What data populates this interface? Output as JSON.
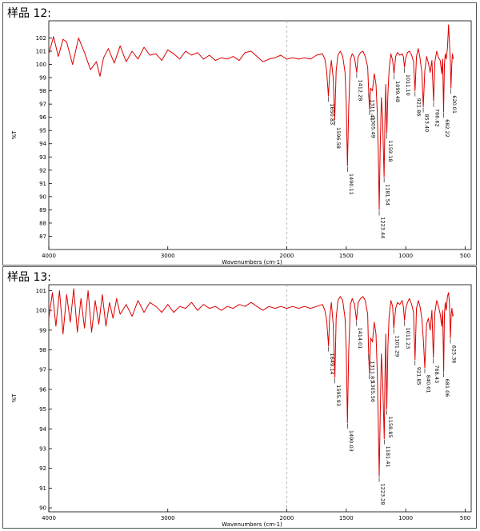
{
  "colors": {
    "spectrum": "#dd0000",
    "axis": "#000000",
    "guide": "#aaaaaa",
    "frame": "#555555"
  },
  "chart_data": [
    {
      "type": "line",
      "title": "样品 12:",
      "xlabel": "Wavenumbers (cm-1)",
      "ylabel": "%T",
      "xlim": [
        4000,
        450
      ],
      "ylim": [
        86,
        103.3
      ],
      "x_ticks": [
        "4000",
        "3000",
        "2000",
        "1500",
        "1000",
        "500"
      ],
      "y_ticks": [
        "87",
        "88",
        "89",
        "90",
        "91",
        "92",
        "93",
        "94",
        "95",
        "96",
        "97",
        "98",
        "99",
        "100",
        "101",
        "102"
      ],
      "guide_line_x": 2000,
      "peaks": [
        {
          "x": 1650,
          "y": 97.6,
          "label": "1650.83"
        },
        {
          "x": 1597,
          "y": 95.8,
          "label": "1596.58"
        },
        {
          "x": 1490,
          "y": 92.3,
          "label": "1490.11"
        },
        {
          "x": 1412,
          "y": 99.4,
          "label": "1412.28"
        },
        {
          "x": 1311,
          "y": 97.9,
          "label": "1311.41"
        },
        {
          "x": 1305,
          "y": 96.6,
          "label": "1305.49"
        },
        {
          "x": 1223,
          "y": 89.0,
          "label": "1223.44"
        },
        {
          "x": 1182,
          "y": 91.5,
          "label": "1181.54"
        },
        {
          "x": 1159,
          "y": 94.8,
          "label": "1159.18"
        },
        {
          "x": 1099,
          "y": 99.3,
          "label": "1099.48"
        },
        {
          "x": 1011,
          "y": 99.8,
          "label": "1011.10"
        },
        {
          "x": 922,
          "y": 98.0,
          "label": "921.86"
        },
        {
          "x": 853,
          "y": 96.8,
          "label": "853.40"
        },
        {
          "x": 766,
          "y": 97.2,
          "label": "766.62"
        },
        {
          "x": 682,
          "y": 96.4,
          "label": "682.22"
        },
        {
          "x": 620,
          "y": 98.2,
          "label": "620.01"
        }
      ],
      "series": [
        {
          "x": [
            4000,
            3960,
            3920,
            3880,
            3850,
            3800,
            3750,
            3700,
            3650,
            3600,
            3570,
            3540,
            3500,
            3450,
            3400,
            3350,
            3300,
            3250,
            3200,
            3150,
            3100,
            3050,
            3000,
            2950,
            2900,
            2850,
            2800,
            2750,
            2700,
            2650,
            2600,
            2550,
            2500,
            2450,
            2400,
            2350,
            2300,
            2250,
            2200,
            2150,
            2100,
            2050,
            2000,
            1950,
            1900,
            1850,
            1800,
            1750,
            1700,
            1680,
            1665,
            1650,
            1640,
            1625,
            1610,
            1597,
            1585,
            1570,
            1550,
            1530,
            1510,
            1500,
            1490,
            1480,
            1465,
            1450,
            1430,
            1412,
            1400,
            1380,
            1360,
            1340,
            1320,
            1311,
            1305,
            1295,
            1280,
            1265,
            1250,
            1240,
            1230,
            1223,
            1215,
            1205,
            1195,
            1182,
            1175,
            1168,
            1159,
            1150,
            1140,
            1125,
            1110,
            1099,
            1085,
            1070,
            1050,
            1030,
            1020,
            1011,
            1000,
            985,
            970,
            950,
            935,
            922,
            910,
            895,
            880,
            865,
            853,
            840,
            825,
            810,
            795,
            780,
            766,
            755,
            740,
            725,
            710,
            698,
            690,
            682,
            675,
            668,
            660,
            650,
            640,
            632,
            625,
            620,
            614,
            608,
            600
          ],
          "y": [
            100.8,
            102.1,
            100.6,
            101.9,
            101.7,
            100.0,
            102.0,
            100.9,
            99.6,
            100.2,
            99.1,
            100.5,
            101.2,
            100.1,
            101.4,
            100.2,
            101.0,
            100.4,
            101.3,
            100.7,
            100.8,
            100.3,
            101.1,
            100.8,
            100.4,
            101.0,
            100.7,
            100.9,
            100.4,
            100.7,
            100.3,
            100.5,
            100.4,
            100.6,
            100.3,
            100.9,
            101.0,
            100.6,
            100.2,
            100.4,
            100.5,
            100.7,
            100.4,
            100.5,
            100.4,
            100.5,
            100.4,
            100.7,
            100.8,
            100.4,
            99.5,
            97.6,
            99.2,
            100.3,
            99.0,
            95.8,
            99.5,
            100.7,
            101.0,
            100.6,
            99.4,
            97.0,
            92.3,
            96.5,
            100.4,
            100.8,
            100.5,
            99.4,
            100.6,
            100.9,
            101.0,
            100.6,
            99.8,
            97.9,
            96.6,
            98.2,
            98.0,
            99.3,
            98.5,
            96.5,
            93.0,
            89.0,
            93.5,
            97.5,
            96.0,
            91.5,
            95.8,
            98.5,
            94.8,
            97.8,
            99.6,
            100.8,
            100.3,
            99.3,
            100.6,
            100.9,
            100.7,
            100.8,
            100.6,
            99.8,
            100.5,
            100.9,
            101.0,
            100.7,
            100.2,
            98.0,
            100.6,
            101.2,
            100.5,
            99.4,
            96.8,
            99.5,
            100.6,
            100.1,
            99.4,
            100.3,
            97.2,
            100.2,
            101.0,
            100.5,
            100.3,
            99.3,
            100.4,
            96.4,
            100.0,
            100.8,
            100.4,
            101.2,
            103.0,
            101.5,
            100.2,
            98.2,
            99.8,
            100.8,
            100.4
          ]
        }
      ]
    },
    {
      "type": "line",
      "title": "样品 13:",
      "xlabel": "Wavenumbers (cm-1)",
      "ylabel": "%T",
      "xlim": [
        4000,
        450
      ],
      "ylim": [
        89.8,
        101.3
      ],
      "x_ticks": [
        "4000",
        "3000",
        "2000",
        "1500",
        "1000",
        "500"
      ],
      "y_ticks": [
        "90",
        "91",
        "92",
        "93",
        "94",
        "95",
        "96",
        "97",
        "98",
        "99",
        "100",
        "101"
      ],
      "guide_line_x": 2000,
      "peaks": [
        {
          "x": 1649,
          "y": 98.2,
          "label": "1649.14"
        },
        {
          "x": 1596,
          "y": 96.6,
          "label": "1595.93"
        },
        {
          "x": 1490,
          "y": 94.3,
          "label": "1490.03"
        },
        {
          "x": 1414,
          "y": 99.5,
          "label": "1414.01"
        },
        {
          "x": 1312,
          "y": 97.8,
          "label": "1311.83"
        },
        {
          "x": 1306,
          "y": 96.8,
          "label": "1305.56"
        },
        {
          "x": 1223,
          "y": 91.6,
          "label": "1223.28"
        },
        {
          "x": 1181,
          "y": 93.5,
          "label": "1181.41"
        },
        {
          "x": 1159,
          "y": 95.0,
          "label": "1158.85"
        },
        {
          "x": 1101,
          "y": 99.1,
          "label": "1101.29"
        },
        {
          "x": 1011,
          "y": 99.5,
          "label": "1011.23"
        },
        {
          "x": 922,
          "y": 97.5,
          "label": "921.85"
        },
        {
          "x": 840,
          "y": 97.1,
          "label": "840.01"
        },
        {
          "x": 768,
          "y": 97.6,
          "label": "768.43"
        },
        {
          "x": 681,
          "y": 96.9,
          "label": "681.06"
        },
        {
          "x": 625,
          "y": 98.6,
          "label": "625.36"
        }
      ],
      "series": [
        {
          "x": [
            4000,
            3970,
            3940,
            3910,
            3880,
            3850,
            3820,
            3790,
            3760,
            3730,
            3700,
            3670,
            3640,
            3610,
            3580,
            3550,
            3520,
            3490,
            3460,
            3430,
            3400,
            3350,
            3300,
            3250,
            3200,
            3150,
            3100,
            3050,
            3000,
            2950,
            2900,
            2850,
            2800,
            2750,
            2700,
            2650,
            2600,
            2550,
            2500,
            2450,
            2400,
            2350,
            2300,
            2250,
            2200,
            2150,
            2100,
            2050,
            2000,
            1950,
            1900,
            1850,
            1800,
            1750,
            1700,
            1680,
            1665,
            1649,
            1640,
            1625,
            1610,
            1596,
            1585,
            1570,
            1550,
            1530,
            1510,
            1500,
            1490,
            1480,
            1465,
            1450,
            1430,
            1414,
            1400,
            1380,
            1360,
            1340,
            1320,
            1312,
            1306,
            1295,
            1280,
            1265,
            1250,
            1240,
            1230,
            1223,
            1215,
            1205,
            1195,
            1181,
            1175,
            1168,
            1159,
            1150,
            1140,
            1125,
            1110,
            1101,
            1085,
            1070,
            1050,
            1030,
            1020,
            1011,
            1000,
            985,
            970,
            950,
            935,
            922,
            910,
            895,
            880,
            865,
            852,
            840,
            825,
            810,
            795,
            780,
            768,
            755,
            740,
            725,
            710,
            698,
            690,
            681,
            675,
            668,
            660,
            650,
            640,
            632,
            625,
            618,
            612,
            605,
            600
          ],
          "y": [
            99.6,
            100.9,
            99.2,
            101.0,
            98.8,
            100.8,
            99.4,
            101.1,
            98.9,
            100.6,
            99.1,
            101.0,
            98.9,
            100.5,
            99.3,
            100.8,
            99.2,
            100.4,
            99.6,
            100.6,
            99.8,
            100.3,
            99.7,
            100.5,
            99.9,
            100.4,
            100.2,
            99.9,
            100.3,
            99.9,
            100.2,
            100.1,
            100.4,
            100.0,
            100.3,
            100.1,
            100.2,
            100.0,
            100.2,
            100.1,
            100.3,
            100.2,
            100.4,
            100.2,
            100.0,
            100.2,
            100.1,
            100.2,
            100.1,
            100.2,
            100.1,
            100.2,
            100.1,
            100.2,
            100.3,
            100.0,
            99.5,
            98.2,
            99.6,
            100.4,
            99.3,
            96.6,
            99.6,
            100.5,
            100.7,
            100.5,
            99.6,
            98.0,
            94.3,
            97.8,
            100.3,
            100.6,
            100.3,
            99.5,
            100.4,
            100.6,
            100.7,
            100.5,
            99.8,
            97.8,
            96.8,
            98.6,
            98.4,
            99.4,
            98.8,
            97.0,
            94.0,
            91.6,
            94.5,
            97.8,
            96.6,
            93.5,
            96.6,
            98.8,
            95.0,
            98.2,
            99.7,
            100.5,
            100.2,
            99.1,
            100.1,
            100.4,
            100.3,
            100.5,
            100.2,
            99.5,
            100.1,
            100.4,
            100.6,
            100.3,
            99.9,
            97.5,
            100.1,
            100.5,
            100.2,
            99.6,
            98.5,
            97.1,
            99.3,
            99.6,
            99.0,
            100.0,
            97.6,
            99.9,
            100.5,
            100.2,
            99.8,
            99.2,
            100.0,
            96.9,
            99.8,
            100.4,
            100.0,
            100.7,
            100.9,
            100.3,
            98.6,
            99.8,
            100.1,
            99.7,
            99.8
          ]
        }
      ]
    }
  ]
}
